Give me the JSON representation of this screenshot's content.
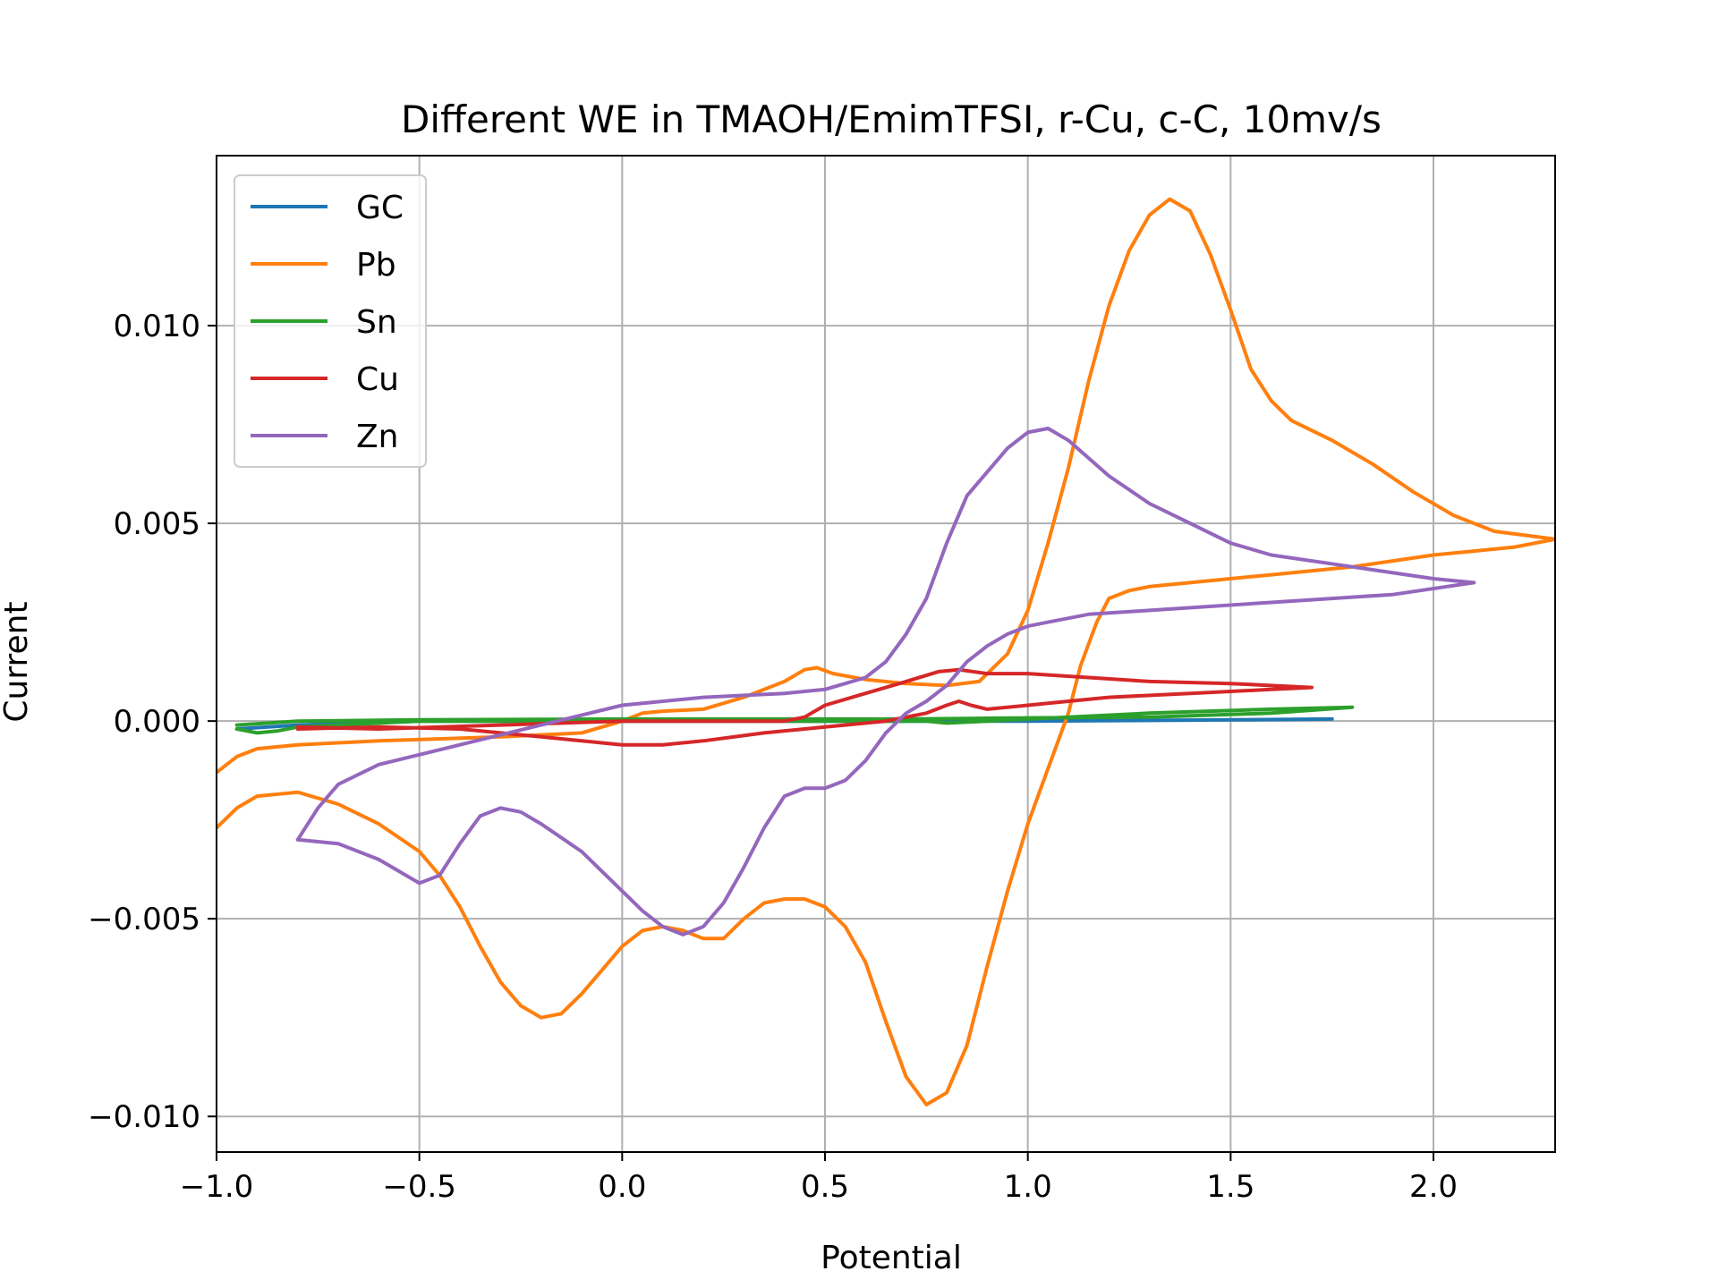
{
  "chart_data": {
    "type": "line",
    "title": "Different WE in TMAOH/EmimTFSI, r-Cu, c-C, 10mv/s",
    "xlabel": "Potential",
    "ylabel": "Current",
    "xlim": [
      -1.0,
      2.3
    ],
    "ylim": [
      -0.0109,
      0.0143
    ],
    "grid": true,
    "legend_position": "top-left",
    "x_ticks": [
      -1.0,
      -0.5,
      0.0,
      0.5,
      1.0,
      1.5,
      2.0
    ],
    "x_tick_labels": [
      "−1.0",
      "−0.5",
      "0.0",
      "0.5",
      "1.0",
      "1.5",
      "2.0"
    ],
    "y_ticks": [
      -0.01,
      -0.005,
      0.0,
      0.005,
      0.01
    ],
    "y_tick_labels": [
      "−0.010",
      "−0.005",
      "0.000",
      "0.005",
      "0.010"
    ],
    "series": [
      {
        "name": "GC",
        "color": "#1f77b4",
        "points": [
          [
            -0.95,
            -0.0002
          ],
          [
            -0.8,
            -0.0001
          ],
          [
            -0.5,
            0.0
          ],
          [
            0.0,
            0.0
          ],
          [
            0.5,
            0.0
          ],
          [
            1.0,
            0.0
          ],
          [
            1.5,
            3e-05
          ],
          [
            1.75,
            5e-05
          ]
        ]
      },
      {
        "name": "Pb",
        "color": "#ff7f0e",
        "points": [
          [
            -1.0,
            -0.0013
          ],
          [
            -0.95,
            -0.0009
          ],
          [
            -0.9,
            -0.0007
          ],
          [
            -0.8,
            -0.0006
          ],
          [
            -0.6,
            -0.0005
          ],
          [
            -0.3,
            -0.0004
          ],
          [
            -0.1,
            -0.0003
          ],
          [
            0.0,
            0.0
          ],
          [
            0.05,
            0.0002
          ],
          [
            0.1,
            0.00025
          ],
          [
            0.2,
            0.0003
          ],
          [
            0.3,
            0.0006
          ],
          [
            0.4,
            0.001
          ],
          [
            0.45,
            0.0013
          ],
          [
            0.48,
            0.00135
          ],
          [
            0.52,
            0.0012
          ],
          [
            0.6,
            0.00105
          ],
          [
            0.7,
            0.00095
          ],
          [
            0.8,
            0.0009
          ],
          [
            0.88,
            0.001
          ],
          [
            0.95,
            0.0017
          ],
          [
            1.0,
            0.0028
          ],
          [
            1.05,
            0.0045
          ],
          [
            1.1,
            0.0064
          ],
          [
            1.15,
            0.0086
          ],
          [
            1.2,
            0.0105
          ],
          [
            1.25,
            0.0119
          ],
          [
            1.3,
            0.0128
          ],
          [
            1.35,
            0.0132
          ],
          [
            1.4,
            0.0129
          ],
          [
            1.45,
            0.0118
          ],
          [
            1.5,
            0.0104
          ],
          [
            1.55,
            0.0089
          ],
          [
            1.6,
            0.0081
          ],
          [
            1.65,
            0.0076
          ],
          [
            1.75,
            0.0071
          ],
          [
            1.85,
            0.0065
          ],
          [
            1.95,
            0.0058
          ],
          [
            2.05,
            0.0052
          ],
          [
            2.15,
            0.0048
          ],
          [
            2.3,
            0.0046
          ],
          [
            2.2,
            0.0044
          ],
          [
            2.1,
            0.0043
          ],
          [
            2.0,
            0.0042
          ],
          [
            1.8,
            0.0039
          ],
          [
            1.6,
            0.0037
          ],
          [
            1.4,
            0.0035
          ],
          [
            1.3,
            0.0034
          ],
          [
            1.25,
            0.0033
          ],
          [
            1.2,
            0.0031
          ],
          [
            1.17,
            0.0025
          ],
          [
            1.13,
            0.0014
          ],
          [
            1.1,
            0.0002
          ],
          [
            1.05,
            -0.0012
          ],
          [
            1.0,
            -0.0026
          ],
          [
            0.95,
            -0.0043
          ],
          [
            0.9,
            -0.0062
          ],
          [
            0.85,
            -0.0082
          ],
          [
            0.8,
            -0.0094
          ],
          [
            0.75,
            -0.0097
          ],
          [
            0.7,
            -0.009
          ],
          [
            0.65,
            -0.0076
          ],
          [
            0.6,
            -0.0061
          ],
          [
            0.55,
            -0.0052
          ],
          [
            0.5,
            -0.0047
          ],
          [
            0.45,
            -0.0045
          ],
          [
            0.4,
            -0.0045
          ],
          [
            0.35,
            -0.0046
          ],
          [
            0.3,
            -0.005
          ],
          [
            0.25,
            -0.0055
          ],
          [
            0.2,
            -0.0055
          ],
          [
            0.15,
            -0.0053
          ],
          [
            0.1,
            -0.0052
          ],
          [
            0.05,
            -0.0053
          ],
          [
            0.0,
            -0.0057
          ],
          [
            -0.05,
            -0.0063
          ],
          [
            -0.1,
            -0.0069
          ],
          [
            -0.15,
            -0.0074
          ],
          [
            -0.2,
            -0.0075
          ],
          [
            -0.25,
            -0.0072
          ],
          [
            -0.3,
            -0.0066
          ],
          [
            -0.35,
            -0.0057
          ],
          [
            -0.4,
            -0.0047
          ],
          [
            -0.45,
            -0.0039
          ],
          [
            -0.5,
            -0.0033
          ],
          [
            -0.6,
            -0.0026
          ],
          [
            -0.7,
            -0.0021
          ],
          [
            -0.8,
            -0.0018
          ],
          [
            -0.9,
            -0.0019
          ],
          [
            -0.95,
            -0.0022
          ],
          [
            -1.0,
            -0.0027
          ]
        ]
      },
      {
        "name": "Sn",
        "color": "#2ca02c",
        "points": [
          [
            -0.95,
            -0.0002
          ],
          [
            -0.9,
            -0.0003
          ],
          [
            -0.85,
            -0.00025
          ],
          [
            -0.8,
            -0.00015
          ],
          [
            -0.5,
            0.0
          ],
          [
            0.0,
            0.0
          ],
          [
            0.5,
            0.0
          ],
          [
            0.75,
            0.0
          ],
          [
            0.8,
            -5e-05
          ],
          [
            0.9,
            0.0
          ],
          [
            1.1,
            0.0001
          ],
          [
            1.3,
            0.0002
          ],
          [
            1.6,
            0.0003
          ],
          [
            1.8,
            0.00035
          ],
          [
            1.6,
            0.0002
          ],
          [
            1.3,
            0.0001
          ],
          [
            1.0,
            8e-05
          ],
          [
            0.7,
            5e-05
          ],
          [
            0.3,
            5e-05
          ],
          [
            0.0,
            5e-05
          ],
          [
            -0.5,
            3e-05
          ],
          [
            -0.8,
            0.0
          ],
          [
            -0.95,
            -0.0001
          ]
        ]
      },
      {
        "name": "Cu",
        "color": "#d62728",
        "points": [
          [
            -0.8,
            -0.0002
          ],
          [
            -0.6,
            -0.00015
          ],
          [
            -0.4,
            -0.0002
          ],
          [
            -0.2,
            -0.0004
          ],
          [
            -0.1,
            -0.0005
          ],
          [
            0.0,
            -0.0006
          ],
          [
            0.1,
            -0.0006
          ],
          [
            0.2,
            -0.0005
          ],
          [
            0.35,
            -0.0003
          ],
          [
            0.5,
            -0.00015
          ],
          [
            0.65,
            0.0
          ],
          [
            0.75,
            0.0002
          ],
          [
            0.8,
            0.0004
          ],
          [
            0.83,
            0.0005
          ],
          [
            0.86,
            0.0004
          ],
          [
            0.9,
            0.0003
          ],
          [
            1.0,
            0.0004
          ],
          [
            1.1,
            0.0005
          ],
          [
            1.2,
            0.0006
          ],
          [
            1.4,
            0.0007
          ],
          [
            1.6,
            0.0008
          ],
          [
            1.7,
            0.00085
          ],
          [
            1.5,
            0.00095
          ],
          [
            1.3,
            0.001
          ],
          [
            1.15,
            0.0011
          ],
          [
            1.0,
            0.0012
          ],
          [
            0.9,
            0.0012
          ],
          [
            0.83,
            0.0013
          ],
          [
            0.78,
            0.00125
          ],
          [
            0.7,
            0.001
          ],
          [
            0.6,
            0.0007
          ],
          [
            0.5,
            0.0004
          ],
          [
            0.45,
            0.0001
          ],
          [
            0.4,
            0.0
          ],
          [
            0.2,
            0.0
          ],
          [
            0.0,
            0.0
          ],
          [
            -0.3,
            -0.0001
          ],
          [
            -0.6,
            -0.0002
          ],
          [
            -0.8,
            -0.00015
          ]
        ]
      },
      {
        "name": "Zn",
        "color": "#9467bd",
        "points": [
          [
            -0.8,
            -0.003
          ],
          [
            -0.7,
            -0.0031
          ],
          [
            -0.6,
            -0.0035
          ],
          [
            -0.5,
            -0.0041
          ],
          [
            -0.45,
            -0.0039
          ],
          [
            -0.4,
            -0.0031
          ],
          [
            -0.35,
            -0.0024
          ],
          [
            -0.3,
            -0.0022
          ],
          [
            -0.25,
            -0.0023
          ],
          [
            -0.2,
            -0.0026
          ],
          [
            -0.1,
            -0.0033
          ],
          [
            0.0,
            -0.0043
          ],
          [
            0.05,
            -0.0048
          ],
          [
            0.1,
            -0.0052
          ],
          [
            0.15,
            -0.0054
          ],
          [
            0.2,
            -0.0052
          ],
          [
            0.25,
            -0.0046
          ],
          [
            0.3,
            -0.0037
          ],
          [
            0.35,
            -0.0027
          ],
          [
            0.4,
            -0.0019
          ],
          [
            0.45,
            -0.0017
          ],
          [
            0.5,
            -0.0017
          ],
          [
            0.55,
            -0.0015
          ],
          [
            0.6,
            -0.001
          ],
          [
            0.65,
            -0.0003
          ],
          [
            0.7,
            0.0002
          ],
          [
            0.75,
            0.0005
          ],
          [
            0.8,
            0.0009
          ],
          [
            0.85,
            0.0015
          ],
          [
            0.9,
            0.0019
          ],
          [
            0.95,
            0.0022
          ],
          [
            1.0,
            0.0024
          ],
          [
            1.05,
            0.0025
          ],
          [
            1.15,
            0.0027
          ],
          [
            1.3,
            0.0028
          ],
          [
            1.6,
            0.003
          ],
          [
            1.9,
            0.0032
          ],
          [
            2.1,
            0.0035
          ],
          [
            2.0,
            0.0036
          ],
          [
            1.8,
            0.0039
          ],
          [
            1.6,
            0.0042
          ],
          [
            1.5,
            0.0045
          ],
          [
            1.4,
            0.005
          ],
          [
            1.3,
            0.0055
          ],
          [
            1.2,
            0.0062
          ],
          [
            1.1,
            0.0071
          ],
          [
            1.05,
            0.0074
          ],
          [
            1.0,
            0.0073
          ],
          [
            0.95,
            0.0069
          ],
          [
            0.9,
            0.0063
          ],
          [
            0.85,
            0.0057
          ],
          [
            0.8,
            0.0045
          ],
          [
            0.75,
            0.0031
          ],
          [
            0.7,
            0.0022
          ],
          [
            0.65,
            0.0015
          ],
          [
            0.6,
            0.0011
          ],
          [
            0.5,
            0.0008
          ],
          [
            0.4,
            0.0007
          ],
          [
            0.2,
            0.0006
          ],
          [
            0.0,
            0.0004
          ],
          [
            -0.2,
            -0.0001
          ],
          [
            -0.4,
            -0.0006
          ],
          [
            -0.6,
            -0.0011
          ],
          [
            -0.7,
            -0.0016
          ],
          [
            -0.75,
            -0.0022
          ],
          [
            -0.8,
            -0.003
          ]
        ]
      }
    ]
  }
}
